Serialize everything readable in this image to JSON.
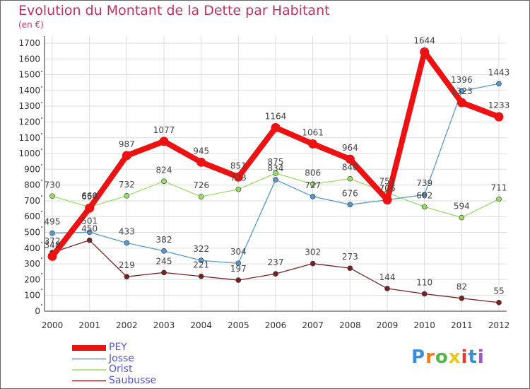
{
  "title": "Evolution du Montant de la Dette par Habitant",
  "subtitle": "(en €)",
  "logo": "Proxiti",
  "colors": {
    "PEY": "#ee1111",
    "Josse": "#5599cc",
    "Orist": "#99dd66",
    "Saubusse": "#772222",
    "title": "#c03060"
  },
  "chart_data": {
    "type": "line",
    "title": "Evolution du Montant de la Dette par Habitant",
    "ylabel": "(en €)",
    "x": [
      2000,
      2001,
      2002,
      2003,
      2004,
      2005,
      2006,
      2007,
      2008,
      2009,
      2010,
      2011,
      2012
    ],
    "ylim": [
      0,
      1700
    ],
    "yticks": [
      0,
      100,
      200,
      300,
      400,
      500,
      600,
      700,
      800,
      900,
      1000,
      1100,
      1200,
      1300,
      1400,
      1500,
      1600,
      1700
    ],
    "grid": true,
    "legend": "bottom-left",
    "series": [
      {
        "name": "PEY",
        "values": [
          348,
          654,
          987,
          1077,
          945,
          851,
          1164,
          1061,
          964,
          706,
          1644,
          1323,
          1233
        ]
      },
      {
        "name": "Josse",
        "values": [
          495,
          501,
          433,
          382,
          322,
          304,
          834,
          727,
          676,
          706,
          739,
          1396,
          1443
        ]
      },
      {
        "name": "Orist",
        "values": [
          730,
          660,
          732,
          824,
          726,
          773,
          875,
          806,
          840,
          751,
          662,
          594,
          711
        ]
      },
      {
        "name": "Saubusse",
        "values": [
          372,
          450,
          219,
          245,
          221,
          197,
          237,
          302,
          273,
          144,
          110,
          82,
          55
        ]
      }
    ]
  }
}
